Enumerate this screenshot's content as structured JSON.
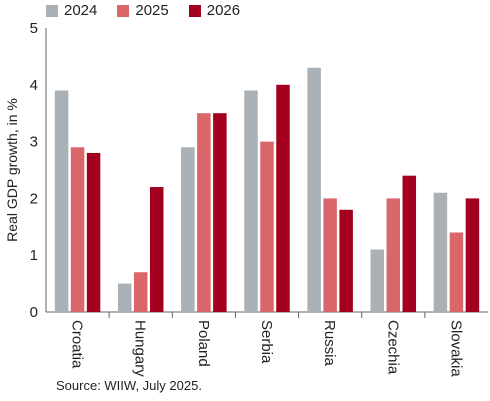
{
  "chart_data": {
    "type": "bar",
    "categories": [
      "Croatia",
      "Hungary",
      "Poland",
      "Serbia",
      "Russia",
      "Czechia",
      "Slovakia"
    ],
    "series": [
      {
        "name": "2024",
        "color": "#a9b1b6",
        "values": [
          3.9,
          0.5,
          2.9,
          3.9,
          4.3,
          1.1,
          2.1
        ]
      },
      {
        "name": "2025",
        "color": "#d9676a",
        "values": [
          2.9,
          0.7,
          3.5,
          3.0,
          2.0,
          2.0,
          1.4
        ]
      },
      {
        "name": "2026",
        "color": "#a3001f",
        "values": [
          2.8,
          2.2,
          3.5,
          4.0,
          1.8,
          2.4,
          2.0
        ]
      }
    ],
    "ylabel": "Real GDP growth, in %",
    "ylim": [
      0,
      5
    ],
    "yticks": [
      "0",
      "1",
      "2",
      "3",
      "4",
      "5"
    ],
    "grid": false,
    "legend": "top-left"
  },
  "source": "Source: WIIW, July 2025."
}
